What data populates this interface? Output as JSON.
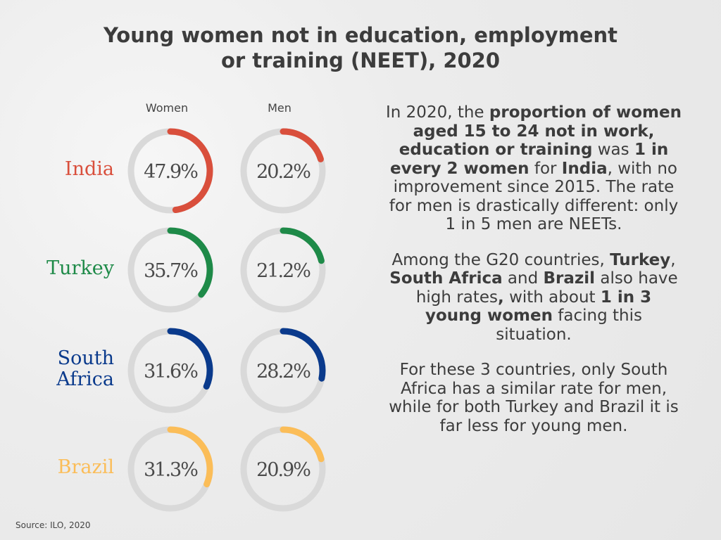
{
  "title": {
    "line1": "Young women not in education, employment",
    "line2": "or training (NEET), 2020"
  },
  "chart_data": {
    "type": "donut",
    "series_labels": [
      "Women",
      "Men"
    ],
    "unit": "%",
    "ylim": [
      0,
      100
    ],
    "rows": [
      {
        "country": "India",
        "color": "#d94f3c",
        "women": 47.9,
        "men": 20.2,
        "women_label": "47.9%",
        "men_label": "20.2%"
      },
      {
        "country": "Turkey",
        "color": "#1e8a48",
        "women": 35.7,
        "men": 21.2,
        "women_label": "35.7%",
        "men_label": "21.2%"
      },
      {
        "country": "South Africa",
        "country_lines": [
          "South",
          "Africa"
        ],
        "color": "#0a3a8c",
        "women": 31.6,
        "men": 28.2,
        "women_label": "31.6%",
        "men_label": "28.2%"
      },
      {
        "country": "Brazil",
        "color": "#fbbd58",
        "women": 31.3,
        "men": 20.9,
        "women_label": "31.3%",
        "men_label": "20.9%"
      }
    ],
    "track_color": "#d9d9d9"
  },
  "narrative": {
    "p1": [
      {
        "t": "In 2020, the ",
        "b": false
      },
      {
        "t": "proportion of women aged 15 to 24 not in work, education or training",
        "b": true
      },
      {
        "t": " was ",
        "b": false
      },
      {
        "t": "1 in every 2 women",
        "b": true
      },
      {
        "t": " for ",
        "b": false
      },
      {
        "t": "India",
        "b": true
      },
      {
        "t": ", with no improvement since 2015. The rate for men is drastically different: only 1 in 5 men are NEETs.",
        "b": false
      }
    ],
    "p2": [
      {
        "t": "Among the G20 countries, ",
        "b": false
      },
      {
        "t": "Turkey",
        "b": true
      },
      {
        "t": ", ",
        "b": false
      },
      {
        "t": "South Africa",
        "b": true
      },
      {
        "t": " and ",
        "b": false
      },
      {
        "t": "Brazil",
        "b": true
      },
      {
        "t": " also have high rates",
        "b": false
      },
      {
        "t": ",",
        "b": true
      },
      {
        "t": " with about ",
        "b": false
      },
      {
        "t": "1 in 3 young women",
        "b": true
      },
      {
        "t": " facing this situation.",
        "b": false
      }
    ],
    "p3": [
      {
        "t": "For these 3 countries, only South Africa has a similar rate for men, while for both Turkey and Brazil it is far less for young men.",
        "b": false
      }
    ]
  },
  "source": "Source: ILO, 2020"
}
